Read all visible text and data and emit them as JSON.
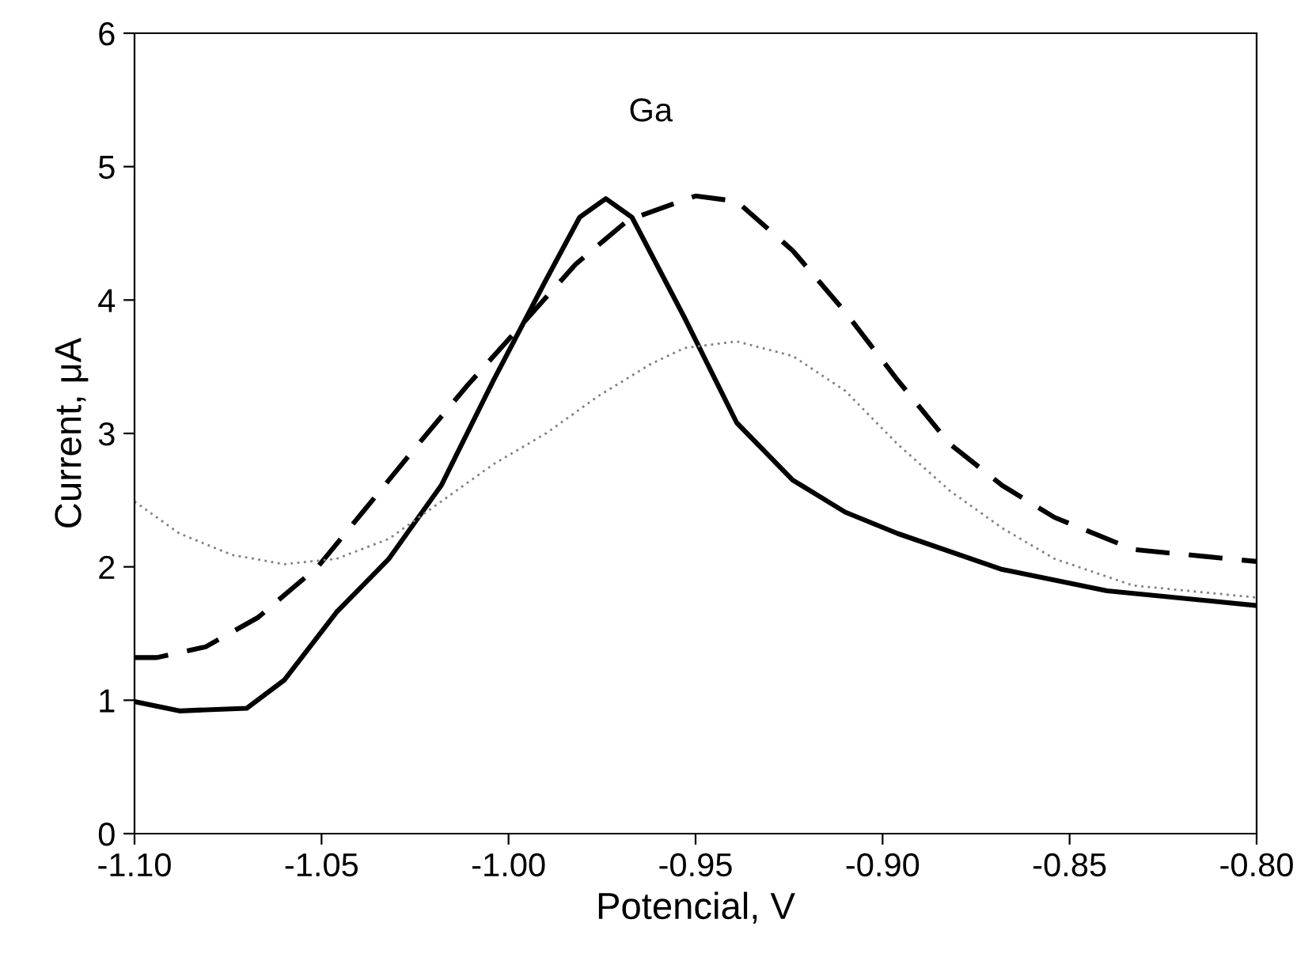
{
  "chart_data": {
    "type": "line",
    "xlabel": "Potencial, V",
    "ylabel": "Current, μA",
    "annotations": [
      "Ga"
    ],
    "xlim": [
      -1.1,
      -0.8
    ],
    "ylim": [
      0,
      6
    ],
    "xticks": [
      {
        "value": -1.1,
        "label": "-1.10"
      },
      {
        "value": -1.05,
        "label": "-1.05"
      },
      {
        "value": -1.0,
        "label": "-1.00"
      },
      {
        "value": -0.95,
        "label": "-0.95"
      },
      {
        "value": -0.9,
        "label": "-0.90"
      },
      {
        "value": -0.85,
        "label": "-0.85"
      },
      {
        "value": -0.8,
        "label": "-0.80"
      }
    ],
    "yticks": [
      0,
      1,
      2,
      3,
      4,
      5,
      6
    ],
    "grid": false,
    "marker": "none",
    "series": [
      {
        "color": "#000000",
        "line_style": "solid",
        "x": [
          -1.1,
          -1.088,
          -1.07,
          -1.06,
          -1.046,
          -1.032,
          -1.018,
          -1.004,
          -0.99,
          -0.981,
          -0.974,
          -0.967,
          -0.953,
          -0.939,
          -0.924,
          -0.91,
          -0.896,
          -0.868,
          -0.84,
          -0.8
        ],
        "values": [
          0.99,
          0.92,
          0.94,
          1.15,
          1.66,
          2.06,
          2.61,
          3.4,
          4.15,
          4.62,
          4.76,
          4.62,
          3.87,
          3.08,
          2.65,
          2.41,
          2.25,
          1.98,
          1.82,
          1.71
        ]
      },
      {
        "color": "#000000",
        "line_style": "dashed",
        "x": [
          -1.1,
          -1.094,
          -1.081,
          -1.067,
          -1.051,
          -1.039,
          -1.025,
          -1.011,
          -0.996,
          -0.982,
          -0.968,
          -0.95,
          -0.939,
          -0.924,
          -0.91,
          -0.896,
          -0.882,
          -0.868,
          -0.854,
          -0.833,
          -0.8
        ],
        "values": [
          1.32,
          1.32,
          1.4,
          1.62,
          2.0,
          2.41,
          2.89,
          3.36,
          3.83,
          4.27,
          4.6,
          4.78,
          4.74,
          4.37,
          3.91,
          3.4,
          2.92,
          2.61,
          2.37,
          2.13,
          2.04
        ]
      },
      {
        "color": "#808080",
        "line_style": "dotted",
        "x": [
          -1.1,
          -1.088,
          -1.074,
          -1.06,
          -1.046,
          -1.032,
          -1.018,
          -1.004,
          -0.99,
          -0.976,
          -0.962,
          -0.953,
          -0.939,
          -0.924,
          -0.91,
          -0.896,
          -0.882,
          -0.868,
          -0.854,
          -0.833,
          -0.8
        ],
        "values": [
          2.49,
          2.25,
          2.09,
          2.02,
          2.06,
          2.21,
          2.49,
          2.77,
          3.0,
          3.28,
          3.52,
          3.64,
          3.69,
          3.58,
          3.32,
          2.92,
          2.57,
          2.29,
          2.06,
          1.86,
          1.77
        ]
      }
    ]
  }
}
